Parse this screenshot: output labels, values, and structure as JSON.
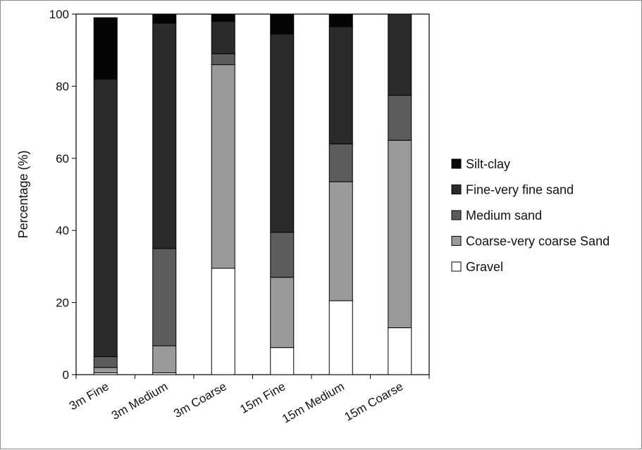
{
  "chart_data": {
    "type": "bar",
    "stacked": true,
    "categories": [
      "3m Fine",
      "3m Medium",
      "3m Coarse",
      "15m Fine",
      "15m Medium",
      "15m Coarse"
    ],
    "series": [
      {
        "name": "Gravel",
        "color": "#ffffff",
        "values": [
          0.5,
          0.5,
          29.5,
          7.5,
          20.5,
          13
        ]
      },
      {
        "name": "Coarse-very coarse Sand",
        "color": "#9a9a9a",
        "values": [
          1.5,
          7.5,
          56.5,
          19.5,
          33,
          52
        ]
      },
      {
        "name": "Medium sand",
        "color": "#5c5c5c",
        "values": [
          3,
          27,
          3,
          12.5,
          10.5,
          12.5
        ]
      },
      {
        "name": "Fine-very fine sand",
        "color": "#2b2b2b",
        "values": [
          77,
          62.5,
          9,
          55,
          32.5,
          22.5
        ]
      },
      {
        "name": "Silt-clay",
        "color": "#050505",
        "values": [
          17,
          2.5,
          2,
          5.5,
          3.5,
          0
        ]
      }
    ],
    "legend_order": [
      "Silt-clay",
      "Fine-very fine sand",
      "Medium sand",
      "Coarse-very coarse Sand",
      "Gravel"
    ],
    "ylabel": "Percentage (%)",
    "xlabel": "",
    "ylim": [
      0,
      100
    ],
    "yticks": [
      "0",
      "20",
      "40",
      "60",
      "80",
      "100"
    ],
    "legend_position": "right",
    "grid": false
  }
}
